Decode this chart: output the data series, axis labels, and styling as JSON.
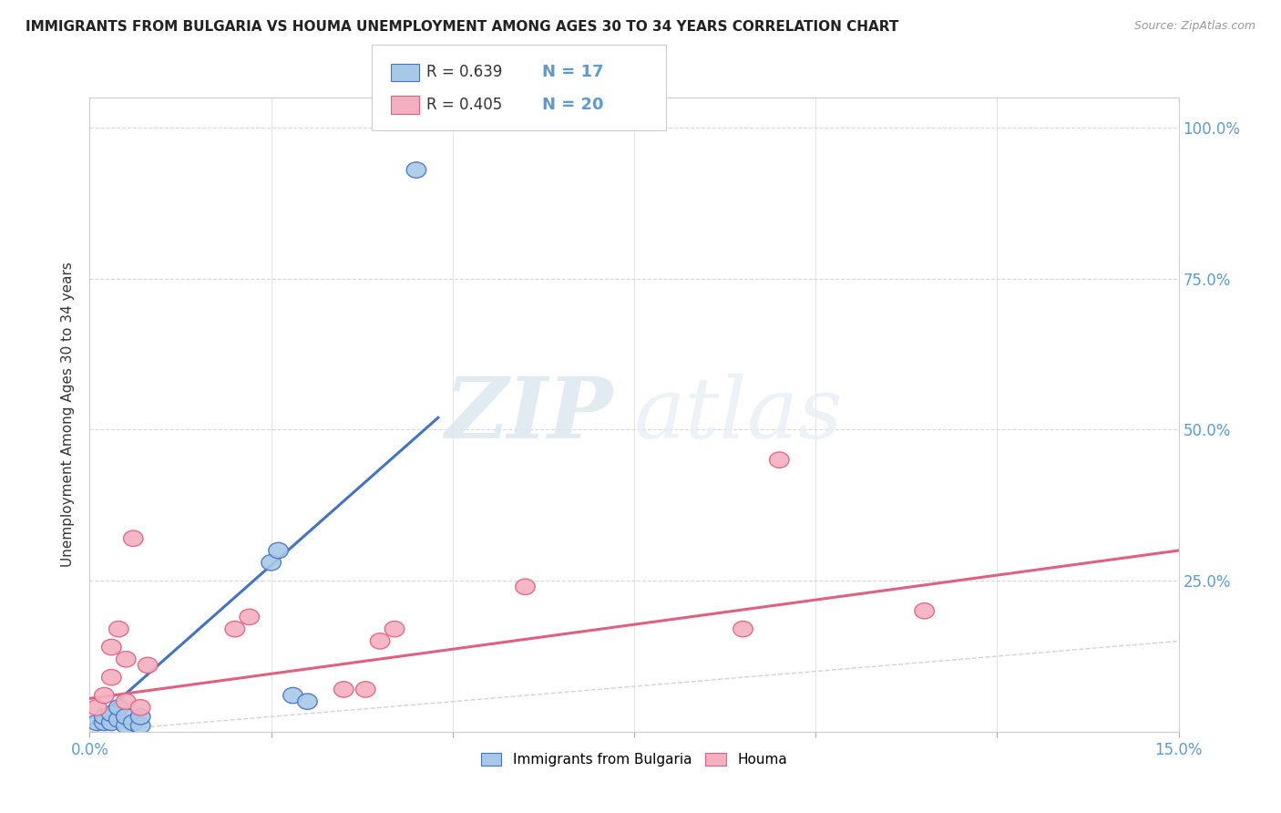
{
  "title": "IMMIGRANTS FROM BULGARIA VS HOUMA UNEMPLOYMENT AMONG AGES 30 TO 34 YEARS CORRELATION CHART",
  "source": "Source: ZipAtlas.com",
  "ylabel_label": "Unemployment Among Ages 30 to 34 years",
  "yticks": [
    0,
    0.25,
    0.5,
    0.75,
    1.0
  ],
  "ytick_labels": [
    "",
    "25.0%",
    "50.0%",
    "75.0%",
    "100.0%"
  ],
  "xticks": [
    0,
    0.025,
    0.05,
    0.075,
    0.1,
    0.125,
    0.15
  ],
  "xlim": [
    0,
    0.15
  ],
  "ylim": [
    0,
    1.05
  ],
  "legend_r_blue": "R = 0.639",
  "legend_n_blue": "N = 17",
  "legend_r_pink": "R = 0.405",
  "legend_n_pink": "N = 20",
  "legend_label_blue": "Immigrants from Bulgaria",
  "legend_label_pink": "Houma",
  "color_blue": "#a8c8e8",
  "color_pink": "#f4b0c0",
  "line_blue": "#4472c4",
  "line_pink": "#e06080",
  "line_ref": "#c8c8c8",
  "blue_scatter_x": [
    0.001,
    0.002,
    0.002,
    0.003,
    0.003,
    0.004,
    0.004,
    0.005,
    0.005,
    0.006,
    0.007,
    0.007,
    0.025,
    0.026,
    0.028,
    0.03,
    0.045
  ],
  "blue_scatter_y": [
    0.015,
    0.015,
    0.025,
    0.015,
    0.03,
    0.02,
    0.04,
    0.01,
    0.025,
    0.015,
    0.01,
    0.025,
    0.28,
    0.3,
    0.06,
    0.05,
    0.93
  ],
  "pink_scatter_x": [
    0.001,
    0.002,
    0.003,
    0.003,
    0.004,
    0.005,
    0.005,
    0.006,
    0.007,
    0.008,
    0.02,
    0.022,
    0.035,
    0.038,
    0.04,
    0.042,
    0.06,
    0.09,
    0.095,
    0.115
  ],
  "pink_scatter_y": [
    0.04,
    0.06,
    0.14,
    0.09,
    0.17,
    0.05,
    0.12,
    0.32,
    0.04,
    0.11,
    0.17,
    0.19,
    0.07,
    0.07,
    0.15,
    0.17,
    0.24,
    0.17,
    0.45,
    0.2
  ],
  "blue_line_x": [
    0.0,
    0.048
  ],
  "blue_line_y": [
    0.01,
    0.52
  ],
  "pink_line_x": [
    0.0,
    0.15
  ],
  "pink_line_y": [
    0.055,
    0.3
  ],
  "ref_line_x": [
    0.0,
    1.0
  ],
  "ref_line_y": [
    0.0,
    1.0
  ],
  "watermark_zip": "ZIP",
  "watermark_atlas": "atlas",
  "background_color": "#ffffff"
}
